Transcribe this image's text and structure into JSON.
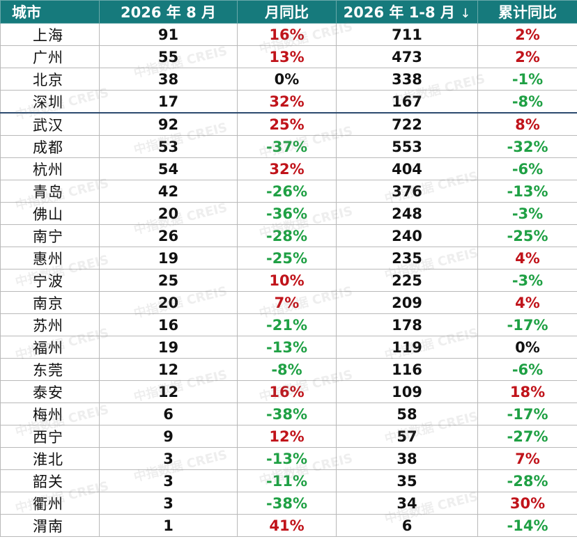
{
  "header": {
    "city": "城市",
    "month": "2026 年 8 月",
    "mom": "月同比",
    "ytd": "2026 年 1-8 月",
    "ytd_sort_icon": "↓",
    "ytd_yoy": "累计同比"
  },
  "watermark": "中指数据 CREIS",
  "colors": {
    "header_bg": "#167a7c",
    "positive": "#c0131a",
    "negative": "#1fa044",
    "neutral": "#111111"
  },
  "rows": [
    {
      "city": "上海",
      "month": "91",
      "mom": "16%",
      "mom_c": "red",
      "ytd": "711",
      "ytd_yoy": "2%",
      "ytd_yoy_c": "red"
    },
    {
      "city": "广州",
      "month": "55",
      "mom": "13%",
      "mom_c": "red",
      "ytd": "473",
      "ytd_yoy": "2%",
      "ytd_yoy_c": "red"
    },
    {
      "city": "北京",
      "month": "38",
      "mom": "0%",
      "mom_c": "black",
      "ytd": "338",
      "ytd_yoy": "-1%",
      "ytd_yoy_c": "green"
    },
    {
      "city": "深圳",
      "month": "17",
      "mom": "32%",
      "mom_c": "red",
      "ytd": "167",
      "ytd_yoy": "-8%",
      "ytd_yoy_c": "green"
    },
    {
      "city": "武汉",
      "month": "92",
      "mom": "25%",
      "mom_c": "red",
      "ytd": "722",
      "ytd_yoy": "8%",
      "ytd_yoy_c": "red"
    },
    {
      "city": "成都",
      "month": "53",
      "mom": "-37%",
      "mom_c": "green",
      "ytd": "553",
      "ytd_yoy": "-32%",
      "ytd_yoy_c": "green"
    },
    {
      "city": "杭州",
      "month": "54",
      "mom": "32%",
      "mom_c": "red",
      "ytd": "404",
      "ytd_yoy": "-6%",
      "ytd_yoy_c": "green"
    },
    {
      "city": "青岛",
      "month": "42",
      "mom": "-26%",
      "mom_c": "green",
      "ytd": "376",
      "ytd_yoy": "-13%",
      "ytd_yoy_c": "green"
    },
    {
      "city": "佛山",
      "month": "20",
      "mom": "-36%",
      "mom_c": "green",
      "ytd": "248",
      "ytd_yoy": "-3%",
      "ytd_yoy_c": "green"
    },
    {
      "city": "南宁",
      "month": "26",
      "mom": "-28%",
      "mom_c": "green",
      "ytd": "240",
      "ytd_yoy": "-25%",
      "ytd_yoy_c": "green"
    },
    {
      "city": "惠州",
      "month": "19",
      "mom": "-25%",
      "mom_c": "green",
      "ytd": "235",
      "ytd_yoy": "4%",
      "ytd_yoy_c": "red"
    },
    {
      "city": "宁波",
      "month": "25",
      "mom": "10%",
      "mom_c": "red",
      "ytd": "225",
      "ytd_yoy": "-3%",
      "ytd_yoy_c": "green"
    },
    {
      "city": "南京",
      "month": "20",
      "mom": "7%",
      "mom_c": "red",
      "ytd": "209",
      "ytd_yoy": "4%",
      "ytd_yoy_c": "red"
    },
    {
      "city": "苏州",
      "month": "16",
      "mom": "-21%",
      "mom_c": "green",
      "ytd": "178",
      "ytd_yoy": "-17%",
      "ytd_yoy_c": "green"
    },
    {
      "city": "福州",
      "month": "19",
      "mom": "-13%",
      "mom_c": "green",
      "ytd": "119",
      "ytd_yoy": "0%",
      "ytd_yoy_c": "black"
    },
    {
      "city": "东莞",
      "month": "12",
      "mom": "-8%",
      "mom_c": "green",
      "ytd": "116",
      "ytd_yoy": "-6%",
      "ytd_yoy_c": "green"
    },
    {
      "city": "泰安",
      "month": "12",
      "mom": "16%",
      "mom_c": "red",
      "ytd": "109",
      "ytd_yoy": "18%",
      "ytd_yoy_c": "red"
    },
    {
      "city": "梅州",
      "month": "6",
      "mom": "-38%",
      "mom_c": "green",
      "ytd": "58",
      "ytd_yoy": "-17%",
      "ytd_yoy_c": "green"
    },
    {
      "city": "西宁",
      "month": "9",
      "mom": "12%",
      "mom_c": "red",
      "ytd": "57",
      "ytd_yoy": "-27%",
      "ytd_yoy_c": "green"
    },
    {
      "city": "淮北",
      "month": "3",
      "mom": "-13%",
      "mom_c": "green",
      "ytd": "38",
      "ytd_yoy": "7%",
      "ytd_yoy_c": "red"
    },
    {
      "city": "韶关",
      "month": "3",
      "mom": "-11%",
      "mom_c": "green",
      "ytd": "35",
      "ytd_yoy": "-28%",
      "ytd_yoy_c": "green"
    },
    {
      "city": "衢州",
      "month": "3",
      "mom": "-38%",
      "mom_c": "green",
      "ytd": "34",
      "ytd_yoy": "30%",
      "ytd_yoy_c": "red"
    },
    {
      "city": "渭南",
      "month": "1",
      "mom": "41%",
      "mom_c": "red",
      "ytd": "6",
      "ytd_yoy": "-14%",
      "ytd_yoy_c": "green"
    }
  ]
}
